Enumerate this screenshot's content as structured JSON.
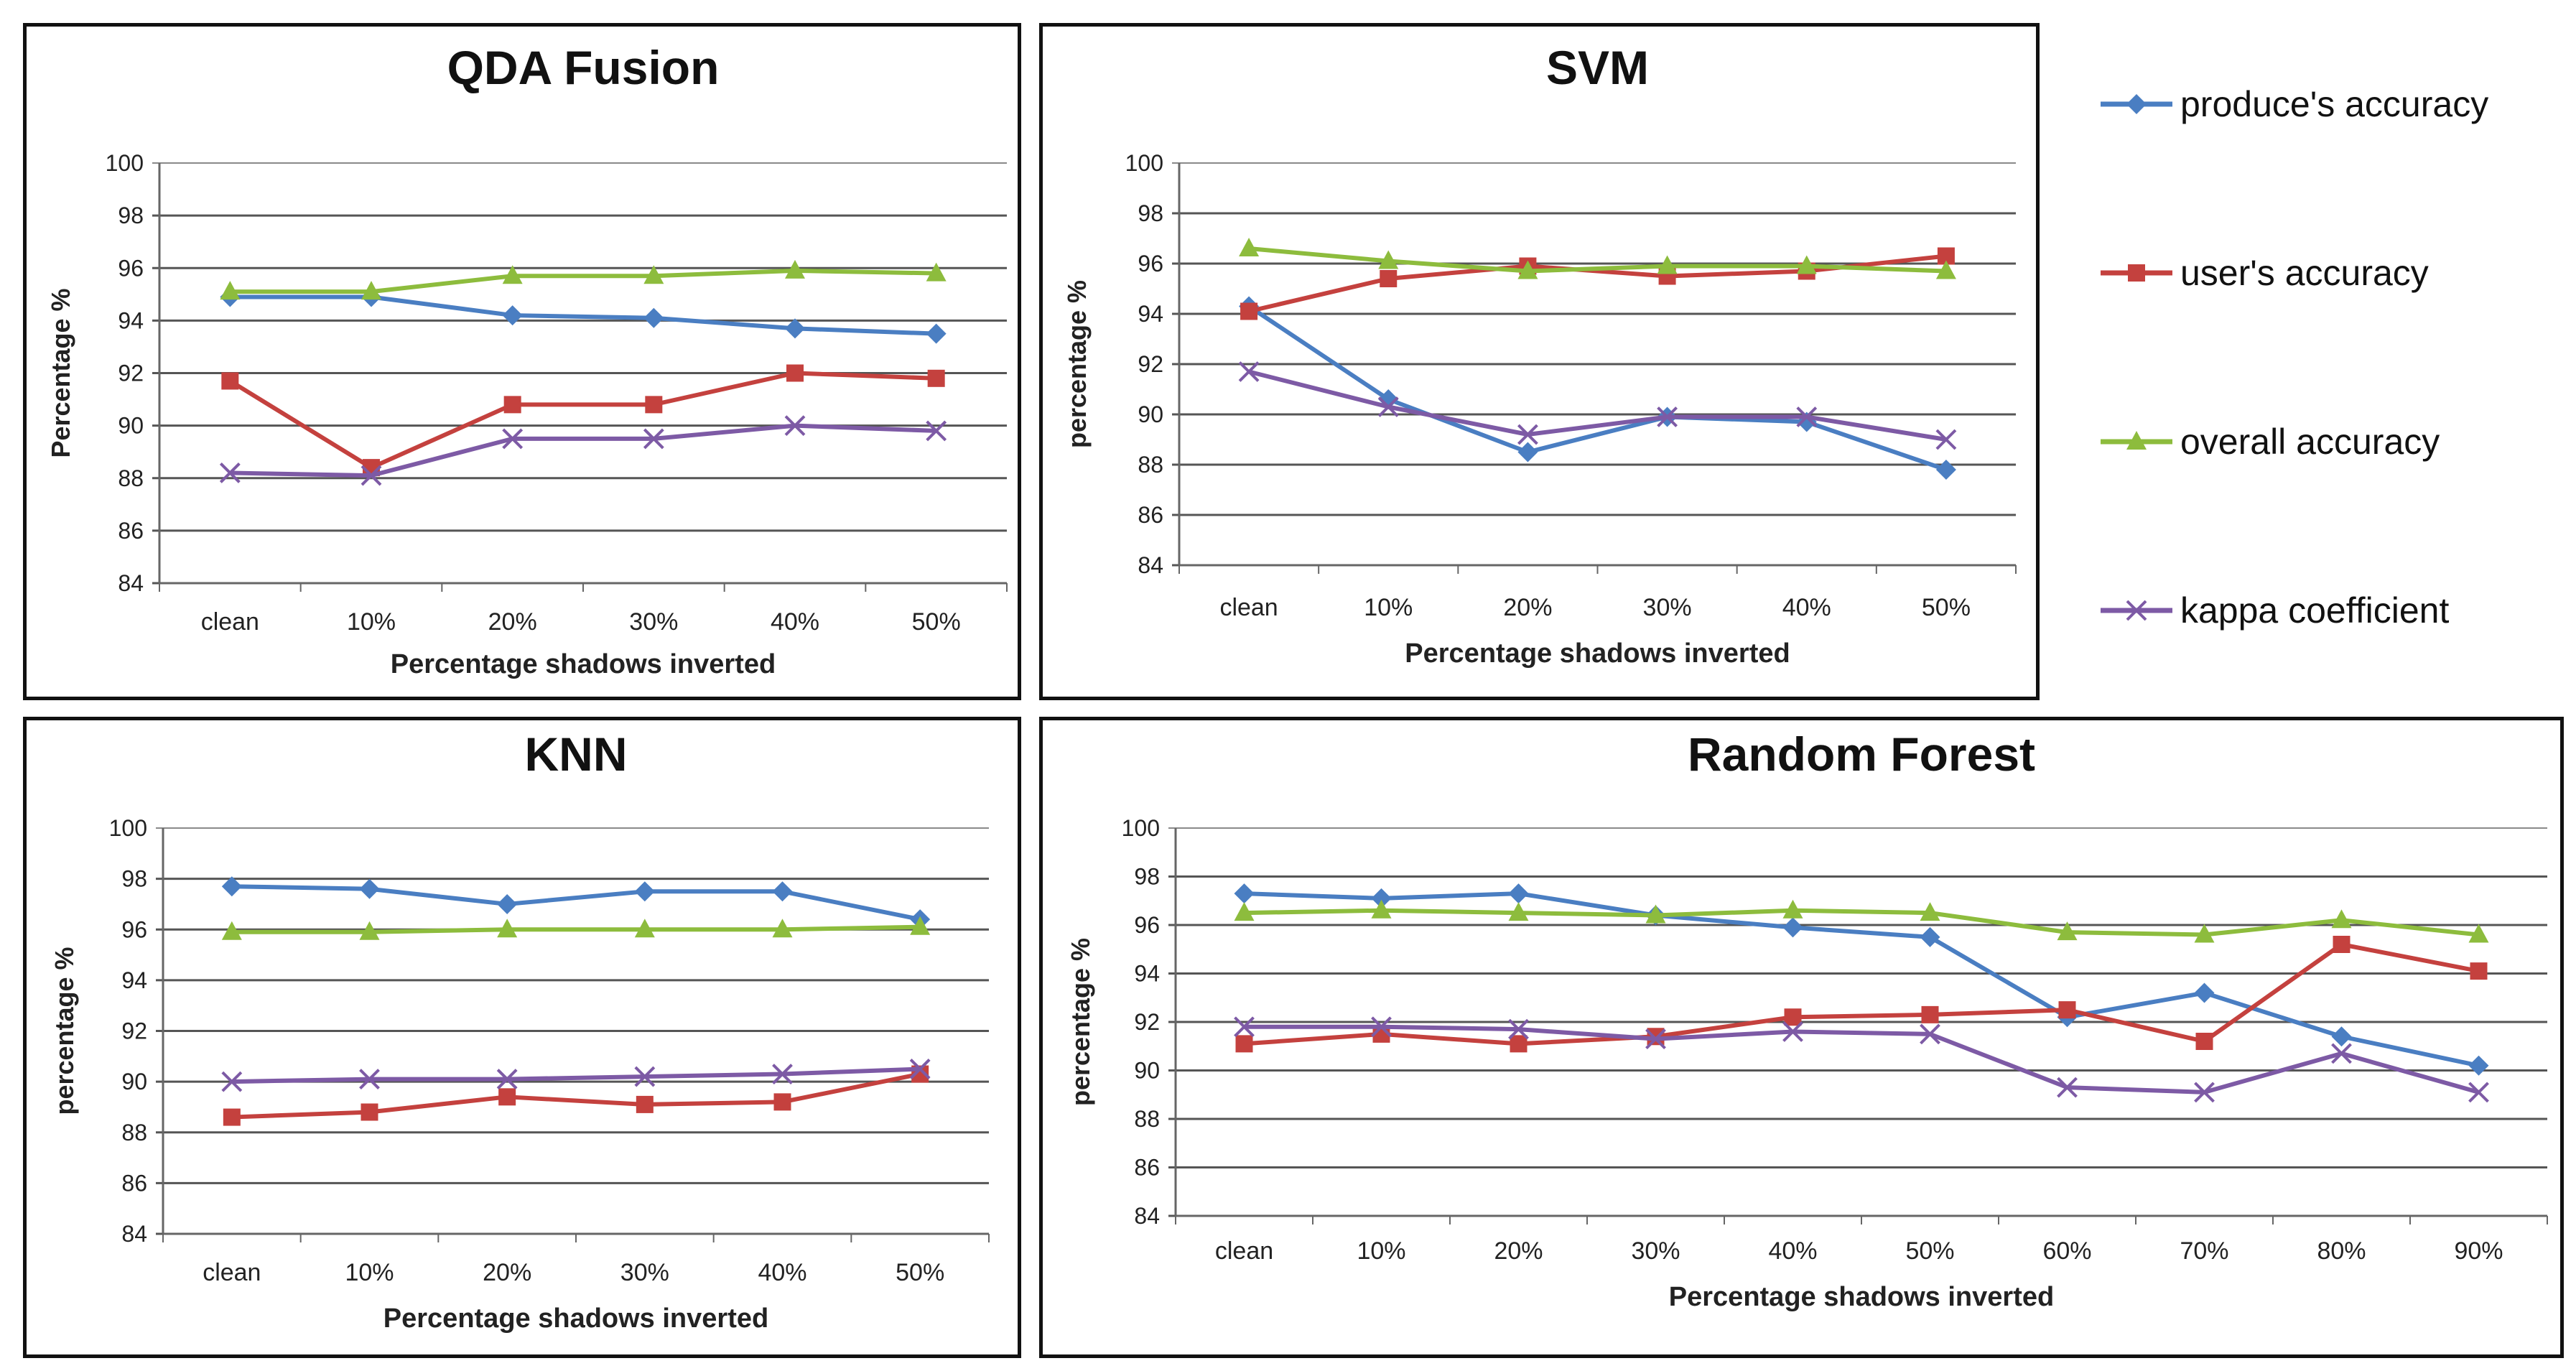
{
  "series_style": [
    {
      "name": "produce's accuracy",
      "color": "#4a7ec2",
      "marker": "diamond"
    },
    {
      "name": "user's accuracy",
      "color": "#c4413e",
      "marker": "square"
    },
    {
      "name": "overall accuracy",
      "color": "#8dbc3d",
      "marker": "triangle"
    },
    {
      "name": "kappa coefficient",
      "color": "#7d5aa5",
      "marker": "x"
    }
  ],
  "chart_data": [
    {
      "type": "line",
      "title": "QDA Fusion",
      "xlabel": "Percentage shadows inverted",
      "ylabel": "Percentage %",
      "ylim": [
        84,
        100
      ],
      "yticks": [
        84,
        86,
        88,
        90,
        92,
        94,
        96,
        98,
        100
      ],
      "categories": [
        "clean",
        "10%",
        "20%",
        "30%",
        "40%",
        "50%"
      ],
      "series": [
        {
          "name": "produce's accuracy",
          "values": [
            94.9,
            94.9,
            94.2,
            94.1,
            93.7,
            93.5
          ]
        },
        {
          "name": "user's accuracy",
          "values": [
            91.7,
            88.4,
            90.8,
            90.8,
            92.0,
            91.8
          ]
        },
        {
          "name": "overall accuracy",
          "values": [
            95.1,
            95.1,
            95.7,
            95.7,
            95.9,
            95.8
          ]
        },
        {
          "name": "kappa coefficient",
          "values": [
            88.2,
            88.1,
            89.5,
            89.5,
            90.0,
            89.8
          ]
        }
      ]
    },
    {
      "type": "line",
      "title": "SVM",
      "xlabel": "Percentage shadows inverted",
      "ylabel": "percentage %",
      "ylim": [
        84,
        100
      ],
      "yticks": [
        84,
        86,
        88,
        90,
        92,
        94,
        96,
        98,
        100
      ],
      "categories": [
        "clean",
        "10%",
        "20%",
        "30%",
        "40%",
        "50%"
      ],
      "series": [
        {
          "name": "produce's accuracy",
          "values": [
            94.3,
            90.6,
            88.5,
            89.9,
            89.7,
            87.8
          ]
        },
        {
          "name": "user's accuracy",
          "values": [
            94.1,
            95.4,
            95.9,
            95.5,
            95.7,
            96.3
          ]
        },
        {
          "name": "overall accuracy",
          "values": [
            96.6,
            96.1,
            95.7,
            95.9,
            95.9,
            95.7
          ]
        },
        {
          "name": "kappa coefficient",
          "values": [
            91.7,
            90.3,
            89.2,
            89.9,
            89.9,
            89.0
          ]
        }
      ]
    },
    {
      "type": "line",
      "title": "KNN",
      "xlabel": "Percentage shadows inverted",
      "ylabel": "percentage %",
      "ylim": [
        84,
        100
      ],
      "yticks": [
        84,
        86,
        88,
        90,
        92,
        94,
        96,
        98,
        100
      ],
      "categories": [
        "clean",
        "10%",
        "20%",
        "30%",
        "40%",
        "50%"
      ],
      "series": [
        {
          "name": "produce's accuracy",
          "values": [
            97.7,
            97.6,
            97.0,
            97.5,
            97.5,
            96.4
          ]
        },
        {
          "name": "user's accuracy",
          "values": [
            88.6,
            88.8,
            89.4,
            89.1,
            89.2,
            90.3
          ]
        },
        {
          "name": "overall accuracy",
          "values": [
            95.9,
            95.9,
            96.0,
            96.0,
            96.0,
            96.1
          ]
        },
        {
          "name": "kappa coefficient",
          "values": [
            90.0,
            90.1,
            90.1,
            90.2,
            90.3,
            90.5
          ]
        }
      ]
    },
    {
      "type": "line",
      "title": "Random Forest",
      "xlabel": "Percentage shadows inverted",
      "ylabel": "percentage %",
      "ylim": [
        84,
        100
      ],
      "yticks": [
        84,
        86,
        88,
        90,
        92,
        94,
        96,
        98,
        100
      ],
      "categories": [
        "clean",
        "10%",
        "20%",
        "30%",
        "40%",
        "50%",
        "60%",
        "70%",
        "80%",
        "90%"
      ],
      "series": [
        {
          "name": "produce's accuracy",
          "values": [
            97.3,
            97.1,
            97.3,
            96.4,
            95.9,
            95.5,
            92.2,
            93.2,
            91.4,
            90.2
          ]
        },
        {
          "name": "user's accuracy",
          "values": [
            91.1,
            91.5,
            91.1,
            91.4,
            92.2,
            92.3,
            92.5,
            91.2,
            95.2,
            94.1
          ]
        },
        {
          "name": "overall accuracy",
          "values": [
            96.5,
            96.6,
            96.5,
            96.4,
            96.6,
            96.5,
            95.7,
            95.6,
            96.2,
            95.6
          ]
        },
        {
          "name": "kappa coefficient",
          "values": [
            91.8,
            91.8,
            91.7,
            91.3,
            91.6,
            91.5,
            89.3,
            89.1,
            90.7,
            89.1
          ]
        }
      ]
    }
  ]
}
